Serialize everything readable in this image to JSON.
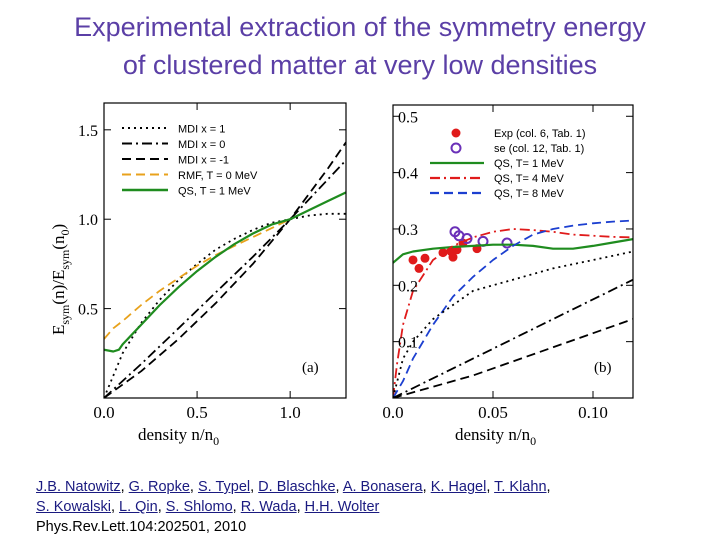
{
  "slide": {
    "title_line1": "Experimental extraction of the symmetry energy",
    "title_line2": "of clustered matter at very low densities",
    "authors_line1": [
      "J.B. Natowitz",
      "G. Ropke",
      "S. Typel",
      "D. Blaschke",
      "A. Bonasera",
      "K. Hagel",
      "T. Klahn"
    ],
    "authors_line2": [
      "S. Kowalski",
      "L. Qin",
      "S. Shlomo",
      "R. Wada",
      "H.H. Wolter"
    ],
    "citation": "Phys.Rev.Lett.104:202501, 2010"
  },
  "chart_data": [
    {
      "type": "line",
      "panel_label": "(a)",
      "xlabel": "density  n/n",
      "xlabel_sub": "0",
      "ylabel": "E",
      "ylabel_rest": [
        "sym",
        "(n)/E",
        "sym",
        "(n",
        "0",
        ")"
      ],
      "xlim": [
        0.0,
        1.3
      ],
      "ylim": [
        0.0,
        1.65
      ],
      "xticks": [
        "0.0",
        "0.5",
        "1.0"
      ],
      "yticks": [
        "0.5",
        "1.0",
        "1.5"
      ],
      "legend_position": "top-left",
      "series": [
        {
          "name": "MDI x =  1",
          "color": "#000000",
          "style": "dotted",
          "x": [
            0.0,
            0.1,
            0.2,
            0.3,
            0.4,
            0.5,
            0.6,
            0.7,
            0.8,
            0.9,
            1.0,
            1.1,
            1.2,
            1.3
          ],
          "y": [
            0.0,
            0.25,
            0.42,
            0.55,
            0.66,
            0.75,
            0.83,
            0.89,
            0.94,
            0.98,
            1.0,
            1.02,
            1.03,
            1.03
          ]
        },
        {
          "name": "MDI x =  0",
          "color": "#000000",
          "style": "dashdot",
          "x": [
            0.0,
            0.2,
            0.4,
            0.6,
            0.8,
            1.0,
            1.2,
            1.3
          ],
          "y": [
            0.0,
            0.19,
            0.39,
            0.59,
            0.79,
            1.0,
            1.22,
            1.33
          ]
        },
        {
          "name": "MDI x = -1",
          "color": "#000000",
          "style": "dashed",
          "x": [
            0.0,
            0.2,
            0.4,
            0.6,
            0.8,
            1.0,
            1.2,
            1.3
          ],
          "y": [
            0.0,
            0.15,
            0.33,
            0.53,
            0.75,
            1.0,
            1.28,
            1.43
          ]
        },
        {
          "name": "RMF, T = 0 MeV",
          "color": "#e8a21c",
          "style": "dashed",
          "x": [
            0.0,
            0.05,
            0.1,
            0.2,
            0.3,
            0.4,
            0.5,
            0.6,
            0.7,
            0.8,
            0.9,
            1.0
          ],
          "y": [
            0.33,
            0.39,
            0.43,
            0.52,
            0.6,
            0.67,
            0.74,
            0.8,
            0.85,
            0.9,
            0.95,
            1.0
          ]
        },
        {
          "name": "QS, T = 1 MeV",
          "color": "#1f8c1f",
          "style": "solid",
          "x": [
            0.0,
            0.05,
            0.08,
            0.1,
            0.2,
            0.3,
            0.4,
            0.5,
            0.6,
            0.7,
            0.8,
            0.9,
            1.0,
            1.1,
            1.2,
            1.3
          ],
          "y": [
            0.27,
            0.26,
            0.27,
            0.3,
            0.41,
            0.52,
            0.62,
            0.71,
            0.79,
            0.86,
            0.92,
            0.97,
            1.0,
            1.05,
            1.1,
            1.15
          ]
        }
      ]
    },
    {
      "type": "scatter",
      "panel_label": "(b)",
      "xlabel": "density  n/n",
      "xlabel_sub": "0",
      "xlim": [
        0.0,
        0.12
      ],
      "ylim": [
        0.0,
        0.52
      ],
      "xticks": [
        "0.0",
        "0.05",
        "0.10"
      ],
      "yticks": [
        "0.1",
        "0.2",
        "0.3",
        "0.4",
        "0.5"
      ],
      "legend_position": "top-right",
      "series": [
        {
          "name": "Exp (col. 6, Tab. 1)",
          "kind": "points",
          "marker": "filled-circle",
          "color": "#e01b1b",
          "x": [
            0.01,
            0.013,
            0.016,
            0.025,
            0.029,
            0.03,
            0.032,
            0.035,
            0.042
          ],
          "y": [
            0.245,
            0.23,
            0.248,
            0.258,
            0.26,
            0.25,
            0.263,
            0.275,
            0.265
          ]
        },
        {
          "name": "se (col. 12, Tab. 1)",
          "kind": "points",
          "marker": "open-circle",
          "color": "#6a30b8",
          "x": [
            0.031,
            0.033,
            0.037,
            0.045,
            0.057
          ],
          "y": [
            0.295,
            0.288,
            0.283,
            0.278,
            0.275
          ]
        },
        {
          "name": "QS, T= 1 MeV",
          "kind": "line",
          "style": "solid",
          "color": "#1f8c1f",
          "x": [
            0.0,
            0.005,
            0.01,
            0.02,
            0.03,
            0.04,
            0.05,
            0.06,
            0.07,
            0.08,
            0.09,
            0.1,
            0.11,
            0.12
          ],
          "y": [
            0.24,
            0.255,
            0.26,
            0.265,
            0.268,
            0.27,
            0.272,
            0.272,
            0.27,
            0.265,
            0.265,
            0.27,
            0.276,
            0.282
          ]
        },
        {
          "name": "QS, T= 4 MeV",
          "kind": "line",
          "style": "dashdot",
          "color": "#e01b1b",
          "x": [
            0.0,
            0.002,
            0.005,
            0.01,
            0.02,
            0.03,
            0.04,
            0.05,
            0.06,
            0.07,
            0.08,
            0.09,
            0.1,
            0.11,
            0.12
          ],
          "y": [
            0.0,
            0.06,
            0.13,
            0.19,
            0.245,
            0.27,
            0.285,
            0.295,
            0.3,
            0.298,
            0.295,
            0.29,
            0.288,
            0.286,
            0.285
          ]
        },
        {
          "name": "QS, T= 8 MeV",
          "kind": "line",
          "style": "dashed",
          "color": "#1c3fd0",
          "x": [
            0.0,
            0.005,
            0.01,
            0.02,
            0.03,
            0.04,
            0.05,
            0.06,
            0.07,
            0.08,
            0.09,
            0.1,
            0.11,
            0.12
          ],
          "y": [
            0.0,
            0.03,
            0.07,
            0.13,
            0.18,
            0.215,
            0.245,
            0.27,
            0.29,
            0.3,
            0.306,
            0.31,
            0.313,
            0.315
          ]
        },
        {
          "name": "",
          "kind": "line",
          "style": "dotted",
          "color": "#000000",
          "x": [
            0.0,
            0.005,
            0.01,
            0.02,
            0.04,
            0.06,
            0.08,
            0.1,
            0.12
          ],
          "y": [
            0.0,
            0.07,
            0.1,
            0.14,
            0.19,
            0.21,
            0.23,
            0.245,
            0.26
          ]
        },
        {
          "name": "",
          "kind": "line",
          "style": "dashdot",
          "color": "#000000",
          "x": [
            0.0,
            0.04,
            0.08,
            0.12
          ],
          "y": [
            0.0,
            0.07,
            0.14,
            0.21
          ]
        },
        {
          "name": "",
          "kind": "line",
          "style": "dashed",
          "color": "#000000",
          "x": [
            0.0,
            0.04,
            0.08,
            0.12
          ],
          "y": [
            0.0,
            0.04,
            0.09,
            0.14
          ]
        }
      ]
    }
  ]
}
